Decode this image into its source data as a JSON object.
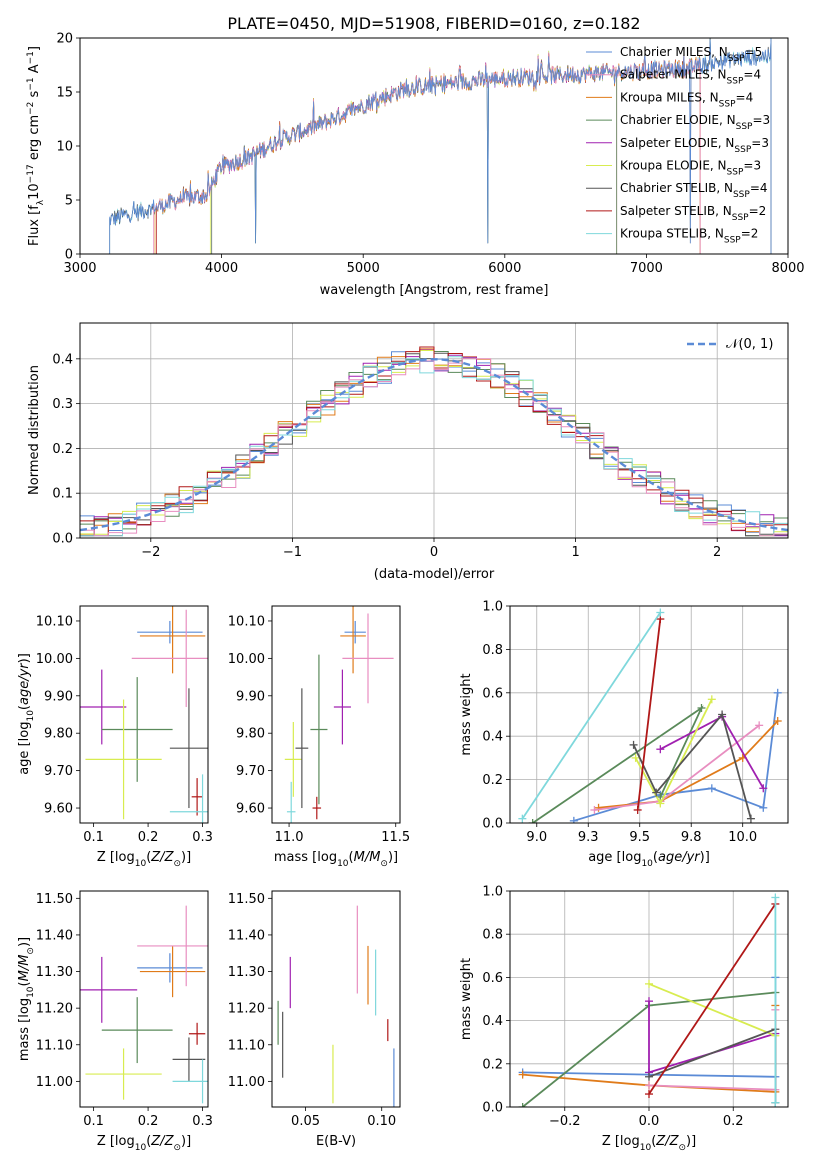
{
  "figure_title": "PLATE=0450, MJD=51908, FIBERID=0160, z=0.182",
  "colors": {
    "blue": "#5b8bd6",
    "orange": "#e07b1a",
    "green": "#5a8a5a",
    "purple": "#a020b0",
    "yellow": "#d8ec50",
    "gray": "#555555",
    "red": "#b01818",
    "cyan": "#7fd8dc",
    "pink": "#e88ec0"
  },
  "chart_data": [
    {
      "id": "spectrum",
      "type": "line",
      "xlabel": "wavelength [Angstrom, rest frame]",
      "ylabel": "Flux [f_λ 10^-17 erg cm^-2 s^-1 A^-1]",
      "xlim": [
        3000,
        8000
      ],
      "ylim": [
        0,
        20
      ],
      "xticks": [
        3000,
        4000,
        5000,
        6000,
        7000,
        8000
      ],
      "yticks": [
        0,
        5,
        10,
        15,
        20
      ],
      "legend_position": "right",
      "legend": [
        "Chabrier MILES, N_SSP=5",
        "Salpeter MILES, N_SSP=4",
        "Kroupa MILES, N_SSP=4",
        "Chabrier ELODIE, N_SSP=3",
        "Salpeter ELODIE, N_SSP=3",
        "Kroupa ELODIE, N_SSP=3",
        "Chabrier STELIB, N_SSP=4",
        "Salpeter STELIB, N_SSP=2",
        "Kroupa STELIB, N_SSP=2"
      ],
      "legend_colors": [
        "#5b8bd6",
        "#e88ec0",
        "#e07b1a",
        "#5a8a5a",
        "#a020b0",
        "#d8ec50",
        "#555555",
        "#b01818",
        "#7fd8dc"
      ],
      "continuum": [
        [
          3210,
          3.2
        ],
        [
          3500,
          4.2
        ],
        [
          3700,
          5.0
        ],
        [
          3900,
          5.5
        ],
        [
          3990,
          8.0
        ],
        [
          4200,
          9.0
        ],
        [
          4400,
          10.5
        ],
        [
          4700,
          12.0
        ],
        [
          5000,
          13.8
        ],
        [
          5300,
          15.3
        ],
        [
          5600,
          15.8
        ],
        [
          6000,
          16.3
        ],
        [
          6300,
          16.5
        ],
        [
          6700,
          16.8
        ],
        [
          7000,
          17.0
        ],
        [
          7300,
          17.2
        ],
        [
          7600,
          18.0
        ],
        [
          7800,
          18.3
        ]
      ],
      "model_ranges": [
        [
          3210,
          7880
        ],
        [
          3520,
          7380
        ],
        [
          3530,
          7380
        ],
        [
          3930,
          6790
        ],
        [
          3930,
          6790
        ],
        [
          3920,
          6790
        ],
        [
          3210,
          7880
        ],
        [
          3540,
          7380
        ],
        [
          3210,
          7880
        ]
      ],
      "dropouts": [
        4240,
        5880,
        7310
      ]
    },
    {
      "id": "residual-histogram",
      "type": "bar",
      "xlabel": "(data-model)/error",
      "ylabel": "Normed distribution",
      "xlim": [
        -2.5,
        2.5
      ],
      "ylim": [
        0,
        0.48
      ],
      "xticks": [
        -2,
        -1,
        0,
        1,
        2
      ],
      "yticks": [
        0.0,
        0.1,
        0.2,
        0.3,
        0.4
      ],
      "grid": true,
      "bin_width": 0.1,
      "reference_curve": "N(0,1)",
      "legend_label": "𝒩(0, 1)",
      "legend_position": "top-right"
    },
    {
      "id": "age-vs-Z",
      "type": "scatter",
      "xlabel": "Z [log10(Z/Z⊙)]",
      "ylabel": "age  [log10(age/yr)]",
      "xlim": [
        0.075,
        0.31
      ],
      "ylim": [
        9.56,
        10.14
      ],
      "xticks": [
        0.1,
        0.2,
        0.3
      ],
      "yticks": [
        9.6,
        9.7,
        9.8,
        9.9,
        10.0,
        10.1
      ],
      "errorbars": [
        {
          "color": "#5b8bd6",
          "x": 0.24,
          "xerr": 0.06,
          "y": 10.07,
          "yerr": 0.03
        },
        {
          "color": "#e07b1a",
          "x": 0.245,
          "xerr": 0.06,
          "y": 10.06,
          "yerr": 0.1
        },
        {
          "color": "#e88ec0",
          "x": 0.27,
          "xerr": 0.1,
          "y": 10.0,
          "yerr": 0.13
        },
        {
          "color": "#a020b0",
          "x": 0.115,
          "xerr": 0.045,
          "y": 9.87,
          "yerr": 0.1
        },
        {
          "color": "#5a8a5a",
          "x": 0.18,
          "xerr": 0.065,
          "y": 9.81,
          "yerr": 0.14
        },
        {
          "color": "#d8ec50",
          "x": 0.155,
          "xerr": 0.07,
          "y": 9.73,
          "yerr": 0.16
        },
        {
          "color": "#555555",
          "x": 0.275,
          "xerr": 0.035,
          "y": 9.76,
          "yerr": 0.16
        },
        {
          "color": "#b01818",
          "x": 0.29,
          "xerr": 0.01,
          "y": 9.63,
          "yerr": 0.05
        },
        {
          "color": "#7fd8dc",
          "x": 0.3,
          "xerr": 0.06,
          "y": 9.59,
          "yerr": 0.1
        }
      ]
    },
    {
      "id": "age-vs-mass",
      "type": "scatter",
      "xlabel": "mass [log10(M/M⊙)]",
      "ylabel": "",
      "xlim": [
        10.92,
        11.52
      ],
      "ylim": [
        9.56,
        10.14
      ],
      "xticks": [
        11.0,
        11.5
      ],
      "yticks": [
        9.6,
        9.7,
        9.8,
        9.9,
        10.0,
        10.1
      ],
      "errorbars": [
        {
          "color": "#5b8bd6",
          "x": 11.31,
          "xerr": 0.05,
          "y": 10.07,
          "yerr": 0.03
        },
        {
          "color": "#e07b1a",
          "x": 11.3,
          "xerr": 0.06,
          "y": 10.06,
          "yerr": 0.1
        },
        {
          "color": "#e88ec0",
          "x": 11.37,
          "xerr": 0.12,
          "y": 10.0,
          "yerr": 0.12
        },
        {
          "color": "#a020b0",
          "x": 11.25,
          "xerr": 0.04,
          "y": 9.87,
          "yerr": 0.1
        },
        {
          "color": "#5a8a5a",
          "x": 11.14,
          "xerr": 0.04,
          "y": 9.81,
          "yerr": 0.2
        },
        {
          "color": "#d8ec50",
          "x": 11.02,
          "xerr": 0.04,
          "y": 9.73,
          "yerr": 0.1
        },
        {
          "color": "#555555",
          "x": 11.06,
          "xerr": 0.03,
          "y": 9.76,
          "yerr": 0.16
        },
        {
          "color": "#b01818",
          "x": 11.13,
          "xerr": 0.02,
          "y": 9.6,
          "yerr": 0.03
        },
        {
          "color": "#7fd8dc",
          "x": 11.01,
          "xerr": 0.02,
          "y": 9.59,
          "yerr": 0.08
        }
      ]
    },
    {
      "id": "mass-weight-vs-age",
      "type": "line",
      "xlabel": "age  [log10(age/yr)]",
      "ylabel": "mass weight",
      "xlim": [
        8.87,
        10.22
      ],
      "ylim": [
        0,
        1.0
      ],
      "xticks": [
        9.0,
        9.25,
        9.5,
        9.75,
        10.0
      ],
      "yticks": [
        0.0,
        0.2,
        0.4,
        0.6,
        0.8,
        1.0
      ],
      "grid": true,
      "series": [
        {
          "color": "#5b8bd6",
          "x": [
            9.18,
            9.6,
            9.85,
            10.1,
            10.17
          ],
          "y": [
            0.01,
            0.13,
            0.16,
            0.07,
            0.6
          ]
        },
        {
          "color": "#e07b1a",
          "x": [
            9.3,
            9.6,
            10.0,
            10.17
          ],
          "y": [
            0.07,
            0.1,
            0.3,
            0.47
          ]
        },
        {
          "color": "#e88ec0",
          "x": [
            9.28,
            9.6,
            10.08
          ],
          "y": [
            0.06,
            0.1,
            0.45
          ]
        },
        {
          "color": "#5a8a5a",
          "x": [
            8.98,
            9.8,
            9.6
          ],
          "y": [
            0.0,
            0.53,
            0.12
          ]
        },
        {
          "color": "#a020b0",
          "x": [
            9.6,
            9.9,
            10.1
          ],
          "y": [
            0.34,
            0.49,
            0.16
          ]
        },
        {
          "color": "#d8ec50",
          "x": [
            9.48,
            9.6,
            9.85
          ],
          "y": [
            0.3,
            0.09,
            0.57
          ]
        },
        {
          "color": "#555555",
          "x": [
            9.47,
            9.58,
            9.9,
            10.04
          ],
          "y": [
            0.36,
            0.14,
            0.5,
            0.02
          ]
        },
        {
          "color": "#b01818",
          "x": [
            9.49,
            9.6
          ],
          "y": [
            0.06,
            0.94
          ]
        },
        {
          "color": "#7fd8dc",
          "x": [
            8.93,
            9.6
          ],
          "y": [
            0.02,
            0.97
          ]
        }
      ]
    },
    {
      "id": "mass-vs-Z",
      "type": "scatter",
      "xlabel": "Z [log10(Z/Z⊙)]",
      "ylabel": "mass [log10(M/M⊙)]",
      "xlim": [
        0.075,
        0.31
      ],
      "ylim": [
        10.93,
        11.52
      ],
      "xticks": [
        0.1,
        0.2,
        0.3
      ],
      "yticks": [
        11.0,
        11.1,
        11.2,
        11.3,
        11.4,
        11.5
      ],
      "errorbars": [
        {
          "color": "#5b8bd6",
          "x": 0.24,
          "xerr": 0.06,
          "y": 11.31,
          "yerr": 0.04
        },
        {
          "color": "#e07b1a",
          "x": 0.245,
          "xerr": 0.06,
          "y": 11.3,
          "yerr": 0.07
        },
        {
          "color": "#e88ec0",
          "x": 0.27,
          "xerr": 0.09,
          "y": 11.37,
          "yerr": 0.11
        },
        {
          "color": "#a020b0",
          "x": 0.115,
          "xerr": 0.065,
          "y": 11.25,
          "yerr": 0.09
        },
        {
          "color": "#5a8a5a",
          "x": 0.18,
          "xerr": 0.065,
          "y": 11.14,
          "yerr": 0.09
        },
        {
          "color": "#d8ec50",
          "x": 0.155,
          "xerr": 0.07,
          "y": 11.02,
          "yerr": 0.07
        },
        {
          "color": "#555555",
          "x": 0.275,
          "xerr": 0.03,
          "y": 11.06,
          "yerr": 0.06
        },
        {
          "color": "#b01818",
          "x": 0.29,
          "xerr": 0.015,
          "y": 11.13,
          "yerr": 0.03
        },
        {
          "color": "#7fd8dc",
          "x": 0.3,
          "xerr": 0.055,
          "y": 11.0,
          "yerr": 0.06
        }
      ]
    },
    {
      "id": "mass-vs-EBV",
      "type": "scatter",
      "xlabel": "E(B-V)",
      "ylabel": "",
      "xlim": [
        0.028,
        0.112
      ],
      "ylim": [
        10.93,
        11.52
      ],
      "xticks": [
        0.05,
        0.1
      ],
      "yticks": [
        11.0,
        11.1,
        11.2,
        11.3,
        11.4,
        11.5
      ],
      "errorbars": [
        {
          "color": "#5b8bd6",
          "x": 0.108,
          "xerr": 0.0,
          "y": 11.01,
          "yerr": 0.08
        },
        {
          "color": "#e07b1a",
          "x": 0.091,
          "xerr": 0.0,
          "y": 11.29,
          "yerr": 0.08
        },
        {
          "color": "#e88ec0",
          "x": 0.084,
          "xerr": 0.0,
          "y": 11.36,
          "yerr": 0.12
        },
        {
          "color": "#a020b0",
          "x": 0.04,
          "xerr": 0.0,
          "y": 11.27,
          "yerr": 0.07
        },
        {
          "color": "#5a8a5a",
          "x": 0.032,
          "xerr": 0.0,
          "y": 11.16,
          "yerr": 0.06
        },
        {
          "color": "#d8ec50",
          "x": 0.068,
          "xerr": 0.0,
          "y": 11.02,
          "yerr": 0.08
        },
        {
          "color": "#555555",
          "x": 0.035,
          "xerr": 0.0,
          "y": 11.1,
          "yerr": 0.09
        },
        {
          "color": "#b01818",
          "x": 0.104,
          "xerr": 0.0,
          "y": 11.14,
          "yerr": 0.03
        },
        {
          "color": "#7fd8dc",
          "x": 0.096,
          "xerr": 0.0,
          "y": 11.27,
          "yerr": 0.09
        }
      ]
    },
    {
      "id": "mass-weight-vs-Z",
      "type": "line",
      "xlabel": "Z [log10(Z/Z⊙)]",
      "ylabel": "mass weight",
      "xlim": [
        -0.33,
        0.33
      ],
      "ylim": [
        0,
        1.0
      ],
      "xticks": [
        -0.2,
        0.0,
        0.2
      ],
      "yticks": [
        0.0,
        0.2,
        0.4,
        0.6,
        0.8,
        1.0
      ],
      "grid": true,
      "series": [
        {
          "color": "#5b8bd6",
          "x": [
            -0.3,
            0.0,
            0.3,
            0.3
          ],
          "y": [
            0.16,
            0.15,
            0.14,
            0.6
          ]
        },
        {
          "color": "#e07b1a",
          "x": [
            -0.3,
            0.0,
            0.3,
            0.3
          ],
          "y": [
            0.15,
            0.1,
            0.07,
            0.47
          ]
        },
        {
          "color": "#e88ec0",
          "x": [
            0.0,
            0.3,
            0.3
          ],
          "y": [
            0.1,
            0.08,
            0.45
          ]
        },
        {
          "color": "#5a8a5a",
          "x": [
            -0.3,
            0.0,
            0.3
          ],
          "y": [
            0.0,
            0.47,
            0.53
          ]
        },
        {
          "color": "#a020b0",
          "x": [
            0.0,
            0.0,
            0.3
          ],
          "y": [
            0.49,
            0.16,
            0.34
          ]
        },
        {
          "color": "#d8ec50",
          "x": [
            0.0,
            0.3
          ],
          "y": [
            0.57,
            0.33
          ]
        },
        {
          "color": "#555555",
          "x": [
            0.0,
            0.3,
            0.3
          ],
          "y": [
            0.14,
            0.36,
            0.02
          ]
        },
        {
          "color": "#b01818",
          "x": [
            0.0,
            0.3
          ],
          "y": [
            0.06,
            0.94
          ]
        },
        {
          "color": "#7fd8dc",
          "x": [
            0.3,
            0.3
          ],
          "y": [
            0.02,
            0.97
          ]
        }
      ]
    }
  ]
}
